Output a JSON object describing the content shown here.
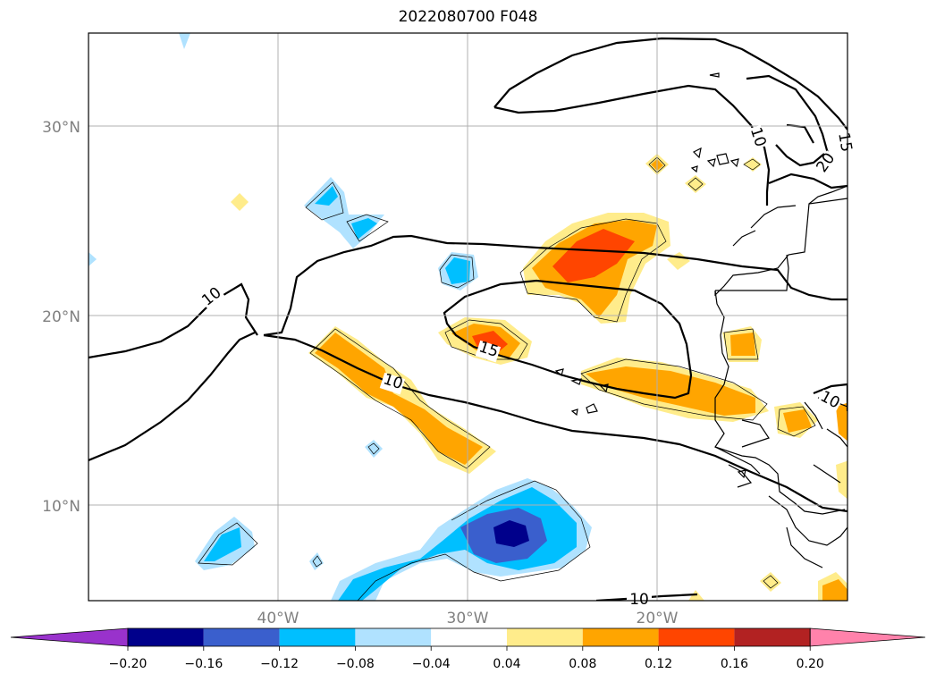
{
  "title": "2022080700 F048",
  "map": {
    "lat_labels": [
      "30°N",
      "20°N",
      "10°N"
    ],
    "lon_labels": [
      "40°W",
      "30°W",
      "20°W"
    ],
    "contour_labels": [
      "10",
      "15",
      "10",
      "20",
      "10",
      "10",
      "10",
      "15"
    ]
  },
  "colorbar": {
    "colors": [
      "#9932cc",
      "#00008b",
      "#3a5fcd",
      "#00bfff",
      "#b0e2ff",
      "#ffffff",
      "#ffec8b",
      "#ffa500",
      "#ff4500",
      "#b22222",
      "#ff82ab"
    ],
    "tick_labels": [
      "−0.20",
      "−0.16",
      "−0.12",
      "−0.08",
      "−0.04",
      "0.04",
      "0.08",
      "0.12",
      "0.16",
      "0.20"
    ]
  }
}
